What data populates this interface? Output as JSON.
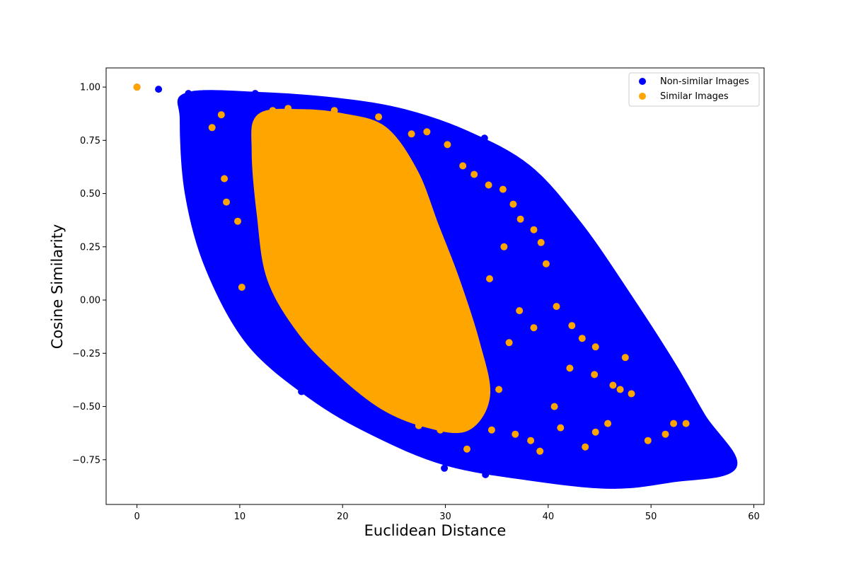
{
  "chart_data": {
    "type": "scatter",
    "xlabel": "Euclidean Distance",
    "ylabel": "Cosine Similarity",
    "xlim": [
      -3,
      61
    ],
    "ylim": [
      -0.96,
      1.09
    ],
    "xticks": [
      0,
      10,
      20,
      30,
      40,
      50,
      60
    ],
    "yticks": [
      -0.75,
      -0.5,
      -0.25,
      0.0,
      0.25,
      0.5,
      0.75,
      1.0
    ],
    "xtick_labels": [
      "0",
      "10",
      "20",
      "30",
      "40",
      "50",
      "60"
    ],
    "ytick_labels": [
      "−0.75",
      "−0.50",
      "−0.25",
      "0.00",
      "0.25",
      "0.50",
      "0.75",
      "1.00"
    ],
    "grid": false,
    "legend_position": "top-right",
    "series": [
      {
        "name": "Non-similar Images",
        "color": "#0000ff",
        "region_outline": [
          [
            5,
            0.96
          ],
          [
            12,
            0.96
          ],
          [
            20,
            0.93
          ],
          [
            26,
            0.88
          ],
          [
            32,
            0.78
          ],
          [
            38,
            0.62
          ],
          [
            43,
            0.35
          ],
          [
            48,
            0.0
          ],
          [
            52,
            -0.3
          ],
          [
            55,
            -0.55
          ],
          [
            58,
            -0.78
          ],
          [
            52,
            -0.84
          ],
          [
            46,
            -0.87
          ],
          [
            38,
            -0.83
          ],
          [
            30,
            -0.76
          ],
          [
            23,
            -0.62
          ],
          [
            17,
            -0.45
          ],
          [
            11,
            -0.2
          ],
          [
            7,
            0.15
          ],
          [
            5,
            0.5
          ],
          [
            4.5,
            0.85
          ]
        ],
        "points": [
          [
            0,
            1.0
          ],
          [
            2.1,
            0.99
          ],
          [
            5,
            0.97
          ],
          [
            5.5,
            0.95
          ],
          [
            56.2,
            -0.64
          ],
          [
            55,
            -0.7
          ],
          [
            57.9,
            -0.78
          ],
          [
            57.2,
            -0.8
          ],
          [
            56.1,
            -0.8
          ],
          [
            54.8,
            -0.6
          ],
          [
            53.5,
            -0.43
          ],
          [
            52.2,
            -0.32
          ],
          [
            51,
            -0.28
          ],
          [
            49.8,
            -0.18
          ],
          [
            46.5,
            -0.87
          ],
          [
            50,
            -0.85
          ],
          [
            33.9,
            -0.82
          ],
          [
            29.9,
            -0.79
          ],
          [
            16,
            -0.43
          ],
          [
            14,
            -0.32
          ],
          [
            10,
            0.35
          ],
          [
            9.5,
            0.9
          ],
          [
            11.5,
            0.97
          ],
          [
            20,
            0.92
          ],
          [
            26.5,
            0.86
          ],
          [
            33.8,
            0.76
          ],
          [
            38.5,
            0.6
          ],
          [
            41.2,
            0.43
          ],
          [
            44,
            0.15
          ],
          [
            45,
            0.08
          ],
          [
            47,
            -0.02
          ]
        ]
      },
      {
        "name": "Similar Images",
        "color": "#ffa500",
        "region_outline": [
          [
            12,
            0.86
          ],
          [
            16,
            0.88
          ],
          [
            20,
            0.86
          ],
          [
            24,
            0.8
          ],
          [
            27,
            0.6
          ],
          [
            29,
            0.35
          ],
          [
            31,
            0.1
          ],
          [
            33,
            -0.2
          ],
          [
            34,
            -0.45
          ],
          [
            32,
            -0.6
          ],
          [
            28,
            -0.58
          ],
          [
            24,
            -0.5
          ],
          [
            20,
            -0.35
          ],
          [
            16,
            -0.15
          ],
          [
            13,
            0.1
          ],
          [
            12,
            0.4
          ],
          [
            11.5,
            0.7
          ]
        ],
        "points": [
          [
            0,
            1.0
          ],
          [
            7.3,
            0.81
          ],
          [
            8.2,
            0.87
          ],
          [
            8.5,
            0.57
          ],
          [
            8.7,
            0.46
          ],
          [
            9.8,
            0.37
          ],
          [
            10.2,
            0.06
          ],
          [
            13.2,
            0.89
          ],
          [
            14.7,
            0.9
          ],
          [
            19.2,
            0.89
          ],
          [
            23.5,
            0.86
          ],
          [
            26.7,
            0.78
          ],
          [
            28.2,
            0.79
          ],
          [
            30.2,
            0.73
          ],
          [
            31.7,
            0.63
          ],
          [
            32.8,
            0.59
          ],
          [
            34.2,
            0.54
          ],
          [
            35.6,
            0.52
          ],
          [
            36.6,
            0.45
          ],
          [
            37.3,
            0.38
          ],
          [
            38.6,
            0.33
          ],
          [
            39.3,
            0.27
          ],
          [
            39.8,
            0.17
          ],
          [
            35.7,
            0.25
          ],
          [
            34.3,
            0.1
          ],
          [
            37.2,
            -0.05
          ],
          [
            38.6,
            -0.13
          ],
          [
            40.8,
            -0.03
          ],
          [
            42.3,
            -0.12
          ],
          [
            43.3,
            -0.18
          ],
          [
            44.6,
            -0.22
          ],
          [
            47.5,
            -0.27
          ],
          [
            48.1,
            -0.44
          ],
          [
            47,
            -0.42
          ],
          [
            46.3,
            -0.4
          ],
          [
            45.8,
            -0.58
          ],
          [
            44.6,
            -0.62
          ],
          [
            43.6,
            -0.69
          ],
          [
            41.2,
            -0.6
          ],
          [
            39.2,
            -0.71
          ],
          [
            38.3,
            -0.66
          ],
          [
            36.8,
            -0.63
          ],
          [
            34.5,
            -0.61
          ],
          [
            32.1,
            -0.7
          ],
          [
            49.7,
            -0.66
          ],
          [
            51.4,
            -0.63
          ],
          [
            52.2,
            -0.58
          ],
          [
            53.4,
            -0.58
          ],
          [
            42.1,
            -0.32
          ],
          [
            44.5,
            -0.35
          ],
          [
            36.2,
            -0.2
          ],
          [
            33.5,
            -0.33
          ],
          [
            35.2,
            -0.42
          ],
          [
            40.6,
            -0.5
          ],
          [
            29.5,
            -0.61
          ],
          [
            27.4,
            -0.59
          ]
        ]
      }
    ]
  }
}
